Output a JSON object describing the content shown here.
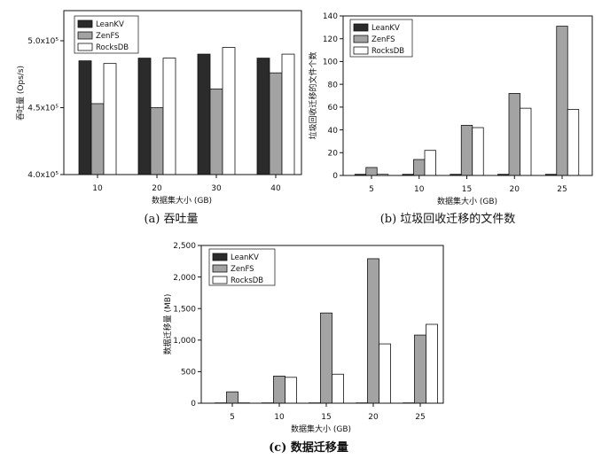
{
  "colors": {
    "LeanKV": "#2b2b2b",
    "ZenFS": "#a3a3a3",
    "RocksDB": "#ffffff",
    "axis": "#111111"
  },
  "chart_data": [
    {
      "type": "bar",
      "caption": "(a) 吞吐量",
      "xlabel": "数据集大小 (GB)",
      "ylabel": "吞吐量 (Ops/s)",
      "categories": [
        "10",
        "20",
        "30",
        "40"
      ],
      "series": [
        {
          "name": "LeanKV",
          "values": [
            485000,
            487000,
            490000,
            487000
          ]
        },
        {
          "name": "ZenFS",
          "values": [
            453000,
            450000,
            464000,
            476000
          ]
        },
        {
          "name": "RocksDB",
          "values": [
            483000,
            487000,
            495000,
            490000
          ]
        }
      ],
      "ylim": [
        400000,
        522500
      ],
      "yticks": [
        400000,
        450000,
        500000
      ],
      "ytick_labels": [
        "4.0x10⁵",
        "4.5x10⁵",
        "5.0x10⁵"
      ],
      "legend": "top-left",
      "grid": false
    },
    {
      "type": "bar",
      "caption": "(b) 垃圾回收迁移的文件数",
      "xlabel": "数据集大小 (GB)",
      "ylabel": "垃圾回收迁移的文件个数",
      "categories": [
        "5",
        "10",
        "15",
        "20",
        "25"
      ],
      "series": [
        {
          "name": "LeanKV",
          "values": [
            1,
            1,
            1,
            1,
            1
          ]
        },
        {
          "name": "ZenFS",
          "values": [
            7,
            14,
            44,
            72,
            131
          ]
        },
        {
          "name": "RocksDB",
          "values": [
            1,
            22,
            42,
            59,
            58
          ]
        }
      ],
      "ylim": [
        0,
        140
      ],
      "yticks": [
        0,
        20,
        40,
        60,
        80,
        100,
        120,
        140
      ],
      "ytick_labels": [
        "0",
        "20",
        "40",
        "60",
        "80",
        "100",
        "120",
        "140"
      ],
      "legend": "top-left",
      "grid": false
    },
    {
      "type": "bar",
      "caption": "(c) 数据迁移量",
      "xlabel": "数据集大小 (GB)",
      "ylabel": "数据迁移量 (MB)",
      "categories": [
        "5",
        "10",
        "15",
        "20",
        "25"
      ],
      "series": [
        {
          "name": "LeanKV",
          "values": [
            5,
            5,
            5,
            5,
            5
          ]
        },
        {
          "name": "ZenFS",
          "values": [
            180,
            430,
            1430,
            2290,
            1080
          ]
        },
        {
          "name": "RocksDB",
          "values": [
            5,
            410,
            460,
            940,
            1250
          ]
        }
      ],
      "ylim": [
        0,
        2500
      ],
      "yticks": [
        0,
        500,
        1000,
        1500,
        2000,
        2500
      ],
      "ytick_labels": [
        "0",
        "500",
        "1,000",
        "1,500",
        "2,000",
        "2,500"
      ],
      "legend": "top-left",
      "grid": false
    }
  ]
}
